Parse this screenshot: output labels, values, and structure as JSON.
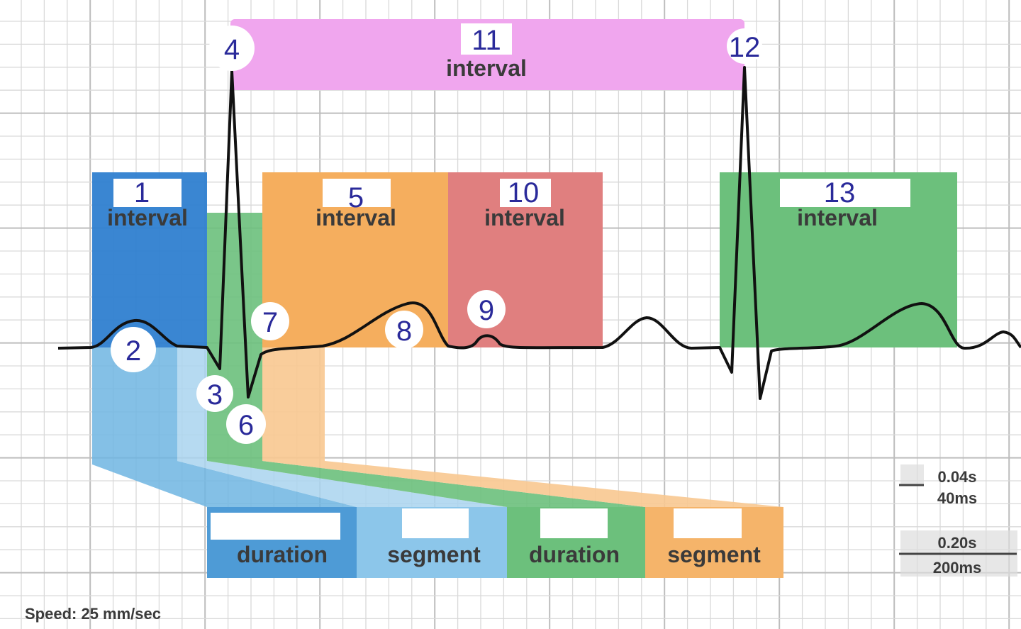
{
  "markers": [
    {
      "label": "1"
    },
    {
      "label": "2"
    },
    {
      "label": "3"
    },
    {
      "label": "4"
    },
    {
      "label": "5"
    },
    {
      "label": "6"
    },
    {
      "label": "7"
    },
    {
      "label": "8"
    },
    {
      "label": "9"
    },
    {
      "label": "10"
    },
    {
      "label": "11"
    },
    {
      "label": "12"
    },
    {
      "label": "13"
    }
  ],
  "region_words": {
    "interval": "interval",
    "duration": "duration",
    "segment": "segment"
  },
  "scale": {
    "small_s": "0.04s",
    "small_ms": "40ms",
    "large_s": "0.20s",
    "large_ms": "200ms"
  },
  "speed": "Speed: 25 mm/sec",
  "colors": {
    "pink": "#f0a6ee",
    "blue": "#2f7fd0",
    "light_blue": "#6fb5e2",
    "pale_blue": "#a9d4ee",
    "orange": "#f5ae5e",
    "light_orange": "#f8c890",
    "red": "#e07f7f",
    "green": "#6cc07c",
    "number": "#2a2a9a"
  }
}
